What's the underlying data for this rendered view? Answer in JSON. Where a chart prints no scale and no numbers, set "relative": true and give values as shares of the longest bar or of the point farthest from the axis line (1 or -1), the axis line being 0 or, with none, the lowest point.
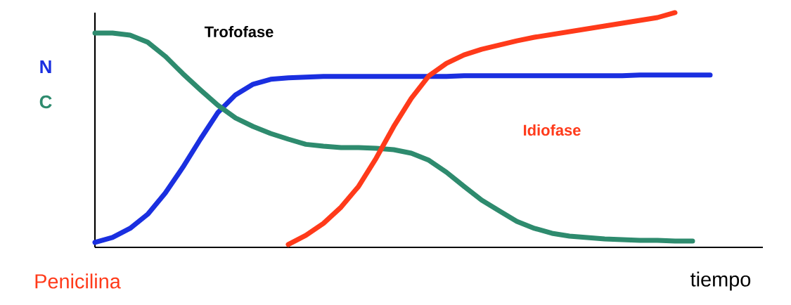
{
  "chart_data": {
    "type": "line",
    "relative": true,
    "xlabel": "tiempo",
    "annotations": [
      "Trofofase",
      "Idiofase"
    ],
    "categories": [
      null,
      null,
      null,
      null,
      null,
      null,
      null,
      null,
      null,
      null,
      null,
      null,
      null,
      null,
      null,
      null,
      null,
      null,
      null,
      null,
      null,
      null,
      null,
      null,
      null,
      null,
      null,
      null,
      null,
      null,
      null,
      null,
      null,
      null,
      null,
      null,
      null,
      null,
      null
    ],
    "series": [
      {
        "name": "N",
        "color": "#1a2fe0",
        "values": [
          0.021,
          0.042,
          0.081,
          0.141,
          0.231,
          0.341,
          0.461,
          0.575,
          0.65,
          0.695,
          0.716,
          0.722,
          0.725,
          0.728,
          0.728,
          0.728,
          0.728,
          0.728,
          0.728,
          0.728,
          0.728,
          0.731,
          0.731,
          0.731,
          0.731,
          0.731,
          0.731,
          0.731,
          0.731,
          0.731,
          0.731,
          0.734,
          0.734,
          0.734,
          0.734,
          0.734,
          null,
          null,
          null
        ]
      },
      {
        "name": "C",
        "color": "#2e8b6e",
        "values": [
          0.913,
          0.913,
          0.904,
          0.874,
          0.814,
          0.74,
          0.671,
          0.605,
          0.551,
          0.515,
          0.485,
          0.461,
          0.439,
          0.431,
          0.425,
          0.425,
          0.422,
          0.416,
          0.401,
          0.371,
          0.32,
          0.26,
          0.201,
          0.156,
          0.111,
          0.081,
          0.06,
          0.048,
          0.042,
          0.036,
          0.033,
          0.03,
          0.03,
          0.027,
          0.027,
          null,
          null,
          null,
          null
        ]
      },
      {
        "name": "Penicilina",
        "color": "#ff3a1a",
        "values": [
          null,
          null,
          null,
          null,
          null,
          null,
          null,
          null,
          null,
          null,
          null,
          0.012,
          0.051,
          0.102,
          0.171,
          0.26,
          0.38,
          0.515,
          0.635,
          0.731,
          0.784,
          0.82,
          0.844,
          0.862,
          0.88,
          0.895,
          0.907,
          0.919,
          0.931,
          0.943,
          0.955,
          0.967,
          0.979,
          1.0,
          null,
          null,
          null,
          null,
          null
        ]
      }
    ]
  }
}
